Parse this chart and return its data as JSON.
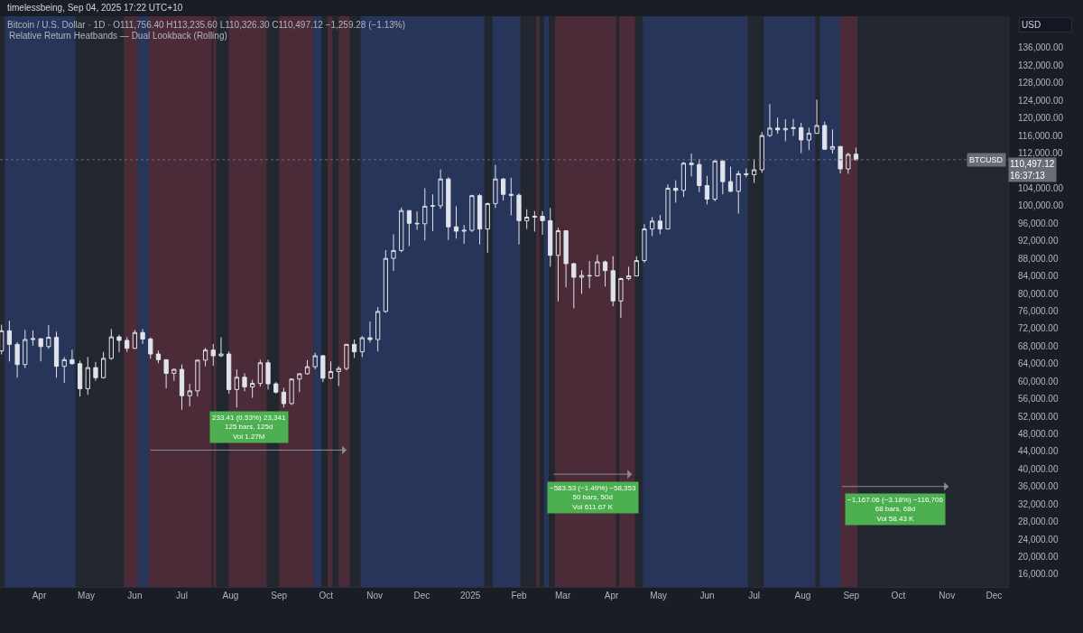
{
  "chart_data": {
    "type": "candlestick",
    "title": "Bitcoin / U.S. Dollar · 1D · O111,756.40 H113,235.60 L110,326.30 C110,497.12 −1,259.28 (−1.13%)",
    "subtitle": "Relative Return Heatbands — Dual Lookback (Rolling)",
    "ylabel": "USD",
    "annotations": [
      "timelessbeing, Sep 04, 2025 17:22 UTC+10",
      {
        "text": "233.41 (0.53%) 23,341\n125 bars, 125d\nVol 1.27M",
        "x": "2024-08-13",
        "y": 44400
      },
      {
        "text": "−583.53 (−1.49%) −58,353\n50 bars, 50d\nVol 611.67 K",
        "x": "2025-03-20",
        "y": 38700
      },
      {
        "text": "−1,167.06 (−3.18%) −116,706\n68 bars, 68d\nVol 58.43 K",
        "x": "2025-09-29",
        "y": 35900
      }
    ],
    "x": [
      "2024-03-08",
      "2024-03-13",
      "2024-03-18",
      "2024-03-23",
      "2024-03-28",
      "2024-04-02",
      "2024-04-07",
      "2024-04-12",
      "2024-04-17",
      "2024-04-22",
      "2024-04-27",
      "2024-05-02",
      "2024-05-07",
      "2024-05-12",
      "2024-05-17",
      "2024-05-22",
      "2024-05-27",
      "2024-06-01",
      "2024-06-06",
      "2024-06-11",
      "2024-06-16",
      "2024-06-21",
      "2024-06-26",
      "2024-07-01",
      "2024-07-06",
      "2024-07-11",
      "2024-07-16",
      "2024-07-21",
      "2024-07-26",
      "2024-07-31",
      "2024-08-05",
      "2024-08-10",
      "2024-08-15",
      "2024-08-20",
      "2024-08-25",
      "2024-08-30",
      "2024-09-04",
      "2024-09-09",
      "2024-09-14",
      "2024-09-19",
      "2024-09-24",
      "2024-09-29",
      "2024-10-04",
      "2024-10-09",
      "2024-10-14",
      "2024-10-19",
      "2024-10-24",
      "2024-10-29",
      "2024-11-03",
      "2024-11-08",
      "2024-11-13",
      "2024-11-18",
      "2024-11-23",
      "2024-11-28",
      "2024-12-03",
      "2024-12-08",
      "2024-12-13",
      "2024-12-18",
      "2024-12-23",
      "2024-12-28",
      "2025-01-02",
      "2025-01-07",
      "2025-01-12",
      "2025-01-17",
      "2025-01-22",
      "2025-01-27",
      "2025-02-01",
      "2025-02-06",
      "2025-02-11",
      "2025-02-16",
      "2025-02-21",
      "2025-02-26",
      "2025-03-03",
      "2025-03-08",
      "2025-03-13",
      "2025-03-18",
      "2025-03-23",
      "2025-03-28",
      "2025-04-02",
      "2025-04-07",
      "2025-04-12",
      "2025-04-17",
      "2025-04-22",
      "2025-04-27",
      "2025-05-02",
      "2025-05-07",
      "2025-05-12",
      "2025-05-17",
      "2025-05-22",
      "2025-05-27",
      "2025-06-01",
      "2025-06-06",
      "2025-06-11",
      "2025-06-16",
      "2025-06-21",
      "2025-06-26",
      "2025-07-01",
      "2025-07-06",
      "2025-07-11",
      "2025-07-16",
      "2025-07-21",
      "2025-07-26",
      "2025-07-31",
      "2025-08-05",
      "2025-08-10",
      "2025-08-15",
      "2025-08-20",
      "2025-08-25",
      "2025-08-30",
      "2025-09-04"
    ],
    "series": [
      {
        "name": "BTCUSD",
        "color": "#e0e3eb",
        "ohlc": [
          [
            66900,
            72900,
            66100,
            71500
          ],
          [
            71500,
            73800,
            64500,
            68400
          ],
          [
            68400,
            68900,
            60800,
            63800
          ],
          [
            63800,
            71700,
            63000,
            69500
          ],
          [
            69500,
            71600,
            68100,
            69700
          ],
          [
            69700,
            69700,
            64500,
            67900
          ],
          [
            67900,
            72800,
            67400,
            70000
          ],
          [
            70000,
            71300,
            60800,
            63400
          ],
          [
            63400,
            65500,
            59600,
            64900
          ],
          [
            64900,
            67200,
            63800,
            64000
          ],
          [
            64000,
            64700,
            56500,
            58300
          ],
          [
            58300,
            65500,
            56900,
            63100
          ],
          [
            63100,
            64400,
            60100,
            60800
          ],
          [
            60800,
            66700,
            60600,
            65200
          ],
          [
            65200,
            71900,
            64900,
            70100
          ],
          [
            70100,
            70600,
            66600,
            69300
          ],
          [
            69300,
            70000,
            66700,
            67500
          ],
          [
            67500,
            71700,
            67400,
            71100
          ],
          [
            71100,
            71900,
            68500,
            69600
          ],
          [
            69600,
            70000,
            65100,
            66200
          ],
          [
            66200,
            67000,
            64100,
            64900
          ],
          [
            64900,
            65000,
            58400,
            61800
          ],
          [
            61800,
            62900,
            60100,
            62700
          ],
          [
            62700,
            63800,
            53500,
            56700
          ],
          [
            56700,
            59400,
            54300,
            57800
          ],
          [
            57800,
            64900,
            56500,
            64800
          ],
          [
            64800,
            67600,
            63400,
            67100
          ],
          [
            67100,
            68500,
            63500,
            65800
          ],
          [
            65800,
            70000,
            65500,
            66200
          ],
          [
            66200,
            66800,
            57200,
            58100
          ],
          [
            58100,
            62700,
            54000,
            60900
          ],
          [
            60900,
            61800,
            57700,
            58700
          ],
          [
            58700,
            60300,
            56200,
            59500
          ],
          [
            59500,
            64900,
            58800,
            64200
          ],
          [
            64200,
            64900,
            58100,
            59400
          ],
          [
            59400,
            59800,
            57200,
            57500
          ],
          [
            57500,
            58500,
            54000,
            54900
          ],
          [
            54900,
            60600,
            54600,
            60500
          ],
          [
            60500,
            61800,
            57500,
            61700
          ],
          [
            61700,
            64800,
            61500,
            63300
          ],
          [
            63300,
            66500,
            62700,
            65800
          ],
          [
            65800,
            66000,
            59800,
            60700
          ],
          [
            60700,
            64500,
            60500,
            62200
          ],
          [
            62200,
            63400,
            58900,
            62900
          ],
          [
            62900,
            68400,
            62500,
            68400
          ],
          [
            68400,
            69500,
            65300,
            66700
          ],
          [
            66700,
            70300,
            65500,
            69900
          ],
          [
            69900,
            73600,
            68800,
            69500
          ],
          [
            69500,
            76900,
            66800,
            75900
          ],
          [
            75900,
            89900,
            75600,
            88000
          ],
          [
            88000,
            93500,
            85100,
            89800
          ],
          [
            89800,
            99600,
            89400,
            98900
          ],
          [
            98900,
            98900,
            90800,
            96000
          ],
          [
            96000,
            98700,
            94500,
            95900
          ],
          [
            95900,
            104000,
            92100,
            99900
          ],
          [
            99900,
            102600,
            94200,
            100000
          ],
          [
            100000,
            108300,
            99300,
            106100
          ],
          [
            106100,
            106500,
            92200,
            95200
          ],
          [
            95200,
            99900,
            92500,
            94200
          ],
          [
            94200,
            95600,
            91300,
            94400
          ],
          [
            94400,
            102500,
            94000,
            102300
          ],
          [
            102300,
            102700,
            91200,
            94700
          ],
          [
            94700,
            100700,
            89300,
            100500
          ],
          [
            100500,
            109300,
            99500,
            106100
          ],
          [
            106100,
            106300,
            101200,
            102600
          ],
          [
            102600,
            106400,
            97800,
            102400
          ],
          [
            102400,
            102800,
            91200,
            96600
          ],
          [
            96600,
            99200,
            94700,
            97400
          ],
          [
            97400,
            98800,
            94100,
            97600
          ],
          [
            97600,
            98800,
            93400,
            96600
          ],
          [
            96600,
            99500,
            86100,
            88700
          ],
          [
            88700,
            95000,
            78200,
            94300
          ],
          [
            94300,
            94400,
            81400,
            86800
          ],
          [
            86800,
            87000,
            76600,
            83700
          ],
          [
            83700,
            85300,
            79900,
            84100
          ],
          [
            84100,
            87400,
            81200,
            84000
          ],
          [
            84000,
            88800,
            83900,
            87200
          ],
          [
            87200,
            87500,
            81600,
            85200
          ],
          [
            85200,
            88500,
            77100,
            78300
          ],
          [
            78300,
            83600,
            74400,
            83400
          ],
          [
            83400,
            86100,
            83000,
            84000
          ],
          [
            84000,
            88500,
            83900,
            87500
          ],
          [
            87500,
            95800,
            87000,
            94700
          ],
          [
            94700,
            97400,
            93100,
            96500
          ],
          [
            96500,
            97900,
            93500,
            94700
          ],
          [
            94700,
            104900,
            94600,
            104000
          ],
          [
            104000,
            105800,
            100700,
            103500
          ],
          [
            103500,
            110000,
            102000,
            109700
          ],
          [
            109700,
            111900,
            106700,
            109400
          ],
          [
            109400,
            110700,
            103100,
            104600
          ],
          [
            104600,
            106800,
            100300,
            101500
          ],
          [
            101500,
            110500,
            101000,
            110200
          ],
          [
            110200,
            110400,
            102600,
            105500
          ],
          [
            105500,
            108900,
            103100,
            103300
          ],
          [
            103300,
            108000,
            98200,
            107300
          ],
          [
            107300,
            108500,
            106500,
            107100
          ],
          [
            107100,
            110500,
            105200,
            108200
          ],
          [
            108200,
            116800,
            107500,
            116000
          ],
          [
            116000,
            123200,
            115700,
            117700
          ],
          [
            117700,
            120100,
            116400,
            117300
          ],
          [
            117300,
            119700,
            114700,
            117600
          ],
          [
            117600,
            119800,
            115900,
            117800
          ],
          [
            117800,
            118900,
            112000,
            115000
          ],
          [
            115000,
            117800,
            112700,
            116500
          ],
          [
            116500,
            124200,
            116400,
            118300
          ],
          [
            118300,
            119200,
            112700,
            112900
          ],
          [
            112900,
            117400,
            111900,
            113500
          ],
          [
            113500,
            113600,
            107400,
            108400
          ],
          [
            108400,
            112100,
            107300,
            111700
          ],
          [
            111756.4,
            113235.6,
            110326.3,
            110497.12
          ]
        ]
      },
      {
        "type": "line",
        "color": "#8a8d96",
        "x": [
          "2024-06-11",
          "2024-10-14"
        ],
        "values": [
          44300,
          44300
        ]
      },
      {
        "type": "line",
        "color": "#8a8d96",
        "x": [
          "2025-02-23",
          "2025-04-14"
        ],
        "values": [
          38800,
          38800
        ]
      },
      {
        "type": "line",
        "color": "#8a8d96",
        "x": [
          "2025-08-26",
          "2025-11-02"
        ],
        "values": [
          36000,
          36000
        ]
      }
    ],
    "ref_lines": [
      {
        "axis": "y",
        "value": 110497.12,
        "label": "110,497.12\n16:37:13",
        "color": "#6a6d78",
        "line_style": "dotted"
      }
    ],
    "bands": [
      {
        "axis": "x",
        "from": "2024-03-10",
        "to": "2024-04-24",
        "color": "#263559"
      },
      {
        "axis": "x",
        "from": "2024-05-25",
        "to": "2024-06-03",
        "color": "#4b2b37"
      },
      {
        "axis": "x",
        "from": "2024-06-03",
        "to": "2024-06-10",
        "color": "#263559"
      },
      {
        "axis": "x",
        "from": "2024-06-10",
        "to": "2024-07-20",
        "color": "#4b2b37"
      },
      {
        "axis": "x",
        "from": "2024-07-21",
        "to": "2024-07-23",
        "color": "#4b2b37"
      },
      {
        "axis": "x",
        "from": "2024-07-31",
        "to": "2024-08-24",
        "color": "#4b2b37"
      },
      {
        "axis": "x",
        "from": "2024-09-01",
        "to": "2024-09-23",
        "color": "#4b2b37"
      },
      {
        "axis": "x",
        "from": "2024-09-23",
        "to": "2024-09-28",
        "color": "#263559"
      },
      {
        "axis": "x",
        "from": "2024-10-02",
        "to": "2024-10-05",
        "color": "#4b2b37"
      },
      {
        "axis": "x",
        "from": "2024-10-09",
        "to": "2024-10-16",
        "color": "#4b2b37"
      },
      {
        "axis": "x",
        "from": "2024-10-23",
        "to": "2025-01-10",
        "color": "#263559"
      },
      {
        "axis": "x",
        "from": "2025-01-15",
        "to": "2025-02-02",
        "color": "#263559"
      },
      {
        "axis": "x",
        "from": "2025-02-12",
        "to": "2025-02-14",
        "color": "#4b2b37"
      },
      {
        "axis": "x",
        "from": "2025-02-17",
        "to": "2025-02-20",
        "color": "#263559"
      },
      {
        "axis": "x",
        "from": "2025-02-24",
        "to": "2025-04-04",
        "color": "#4b2b37"
      },
      {
        "axis": "x",
        "from": "2025-04-06",
        "to": "2025-04-16",
        "color": "#4b2b37"
      },
      {
        "axis": "x",
        "from": "2025-04-21",
        "to": "2025-06-27",
        "color": "#263559"
      },
      {
        "axis": "x",
        "from": "2025-07-07",
        "to": "2025-08-09",
        "color": "#263559"
      },
      {
        "axis": "x",
        "from": "2025-08-12",
        "to": "2025-08-25",
        "color": "#263559"
      },
      {
        "axis": "x",
        "from": "2025-08-25",
        "to": "2025-09-05",
        "color": "#4b2b37"
      }
    ],
    "xlim": [
      "2024-03-07",
      "2025-12-10"
    ],
    "xticks": [
      {
        "value": "2024-04-01",
        "label": "Apr"
      },
      {
        "value": "2024-05-01",
        "label": "May"
      },
      {
        "value": "2024-06-01",
        "label": "Jun"
      },
      {
        "value": "2024-07-01",
        "label": "Jul"
      },
      {
        "value": "2024-08-01",
        "label": "Aug"
      },
      {
        "value": "2024-09-01",
        "label": "Sep"
      },
      {
        "value": "2024-10-01",
        "label": "Oct"
      },
      {
        "value": "2024-11-01",
        "label": "Nov"
      },
      {
        "value": "2024-12-01",
        "label": "Dec"
      },
      {
        "value": "2025-01-01",
        "label": "2025"
      },
      {
        "value": "2025-02-01",
        "label": "Feb"
      },
      {
        "value": "2025-03-01",
        "label": "Mar"
      },
      {
        "value": "2025-04-01",
        "label": "Apr"
      },
      {
        "value": "2025-05-01",
        "label": "May"
      },
      {
        "value": "2025-06-01",
        "label": "Jun"
      },
      {
        "value": "2025-07-01",
        "label": "Jul"
      },
      {
        "value": "2025-08-01",
        "label": "Aug"
      },
      {
        "value": "2025-09-01",
        "label": "Sep"
      },
      {
        "value": "2025-10-01",
        "label": "Oct"
      },
      {
        "value": "2025-11-01",
        "label": "Nov"
      },
      {
        "value": "2025-12-01",
        "label": "Dec"
      }
    ],
    "ylim": [
      13100,
      143200
    ],
    "yticks": [
      {
        "value": 16000,
        "label": "16,000.00"
      },
      {
        "value": 20000,
        "label": "20,000.00"
      },
      {
        "value": 24000,
        "label": "24,000.00"
      },
      {
        "value": 28000,
        "label": "28,000.00"
      },
      {
        "value": 32000,
        "label": "32,000.00"
      },
      {
        "value": 36000,
        "label": "36,000.00"
      },
      {
        "value": 40000,
        "label": "40,000.00"
      },
      {
        "value": 44000,
        "label": "44,000.00"
      },
      {
        "value": 48000,
        "label": "48,000.00"
      },
      {
        "value": 52000,
        "label": "52,000.00"
      },
      {
        "value": 56000,
        "label": "56,000.00"
      },
      {
        "value": 60000,
        "label": "60,000.00"
      },
      {
        "value": 64000,
        "label": "64,000.00"
      },
      {
        "value": 68000,
        "label": "68,000.00"
      },
      {
        "value": 72000,
        "label": "72,000.00"
      },
      {
        "value": 76000,
        "label": "76,000.00"
      },
      {
        "value": 80000,
        "label": "80,000.00"
      },
      {
        "value": 84000,
        "label": "84,000.00"
      },
      {
        "value": 88000,
        "label": "88,000.00"
      },
      {
        "value": 92000,
        "label": "92,000.00"
      },
      {
        "value": 96000,
        "label": "96,000.00"
      },
      {
        "value": 100000,
        "label": "100,000.00"
      },
      {
        "value": 104000,
        "label": "104,000.00"
      },
      {
        "value": 112000,
        "label": "112,000.00"
      },
      {
        "value": 116000,
        "label": "116,000.00"
      },
      {
        "value": 120000,
        "label": "120,000.00"
      },
      {
        "value": 124000,
        "label": "124,000.00"
      },
      {
        "value": 128000,
        "label": "128,000.00"
      },
      {
        "value": 132000,
        "label": "132,000.00"
      },
      {
        "value": 136000,
        "label": "136,000.00"
      }
    ]
  }
}
